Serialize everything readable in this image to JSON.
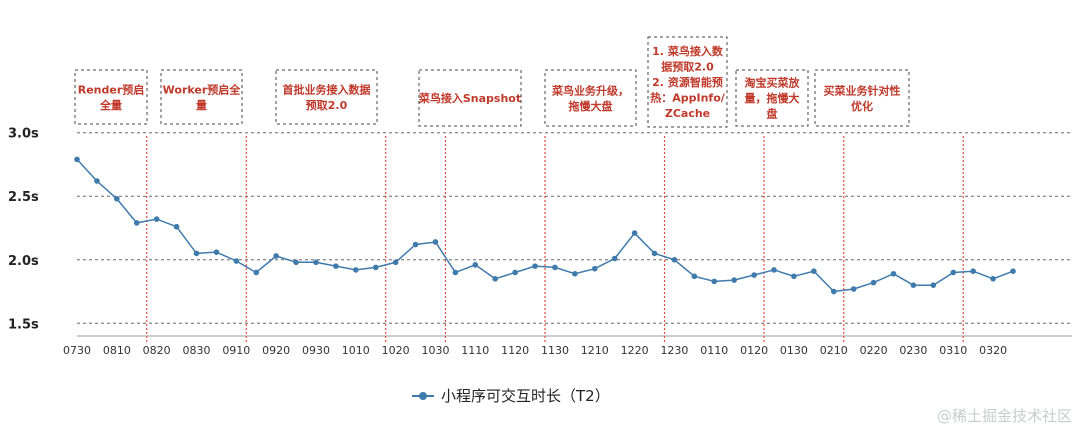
{
  "chart_data": {
    "type": "line",
    "ylim": [
      1.4,
      3.1
    ],
    "grid": true,
    "legend_position": "bottom",
    "y_ticks": [
      "3.0s",
      "2.5s",
      "2.0s",
      "1.5s"
    ],
    "y_tick_values": [
      3.0,
      2.5,
      2.0,
      1.5
    ],
    "x_ticks": [
      "0730",
      "0810",
      "0820",
      "0830",
      "0910",
      "0920",
      "0930",
      "1010",
      "1020",
      "1030",
      "1110",
      "1120",
      "1130",
      "1210",
      "1220",
      "1230",
      "0110",
      "0120",
      "0130",
      "0210",
      "0220",
      "0230",
      "0310",
      "0320"
    ],
    "series": [
      {
        "name": "小程序可交互时长（T2）",
        "color": "#3f7aad",
        "values": [
          2.79,
          2.62,
          2.48,
          2.29,
          2.32,
          2.26,
          2.05,
          2.06,
          1.99,
          1.9,
          2.03,
          1.98,
          1.98,
          1.95,
          1.92,
          1.94,
          1.98,
          2.12,
          2.14,
          1.9,
          1.96,
          1.85,
          1.9,
          1.95,
          1.94,
          1.89,
          1.93,
          2.01,
          2.21,
          2.05,
          2.0,
          1.87,
          1.83,
          1.84,
          1.88,
          1.92,
          1.87,
          1.91,
          1.75,
          1.77,
          1.82,
          1.89,
          1.8,
          1.8,
          1.9,
          1.91,
          1.85,
          1.91
        ]
      }
    ],
    "markers_color": "#e74c3c",
    "annotations": [
      {
        "lines": [
          "Render预启",
          "全量"
        ]
      },
      {
        "lines": [
          "Worker预启全",
          "量"
        ]
      },
      {
        "lines": [
          "首批业务接入数据",
          "预取2.0"
        ]
      },
      {
        "lines": [
          "菜鸟接入Snapshot"
        ]
      },
      {
        "lines": [
          "菜鸟业务升级，",
          "拖慢大盘"
        ]
      },
      {
        "lines": [
          "1. 菜鸟接入数",
          "据预取2.0",
          "2. 资源智能预",
          "热：AppInfo/",
          "ZCache"
        ]
      },
      {
        "lines": [
          "淘宝买菜放",
          "量，拖慢大",
          "盘"
        ]
      },
      {
        "lines": [
          "买菜业务针对性",
          "优化"
        ]
      }
    ]
  },
  "watermark": "@稀土掘金技术社区"
}
